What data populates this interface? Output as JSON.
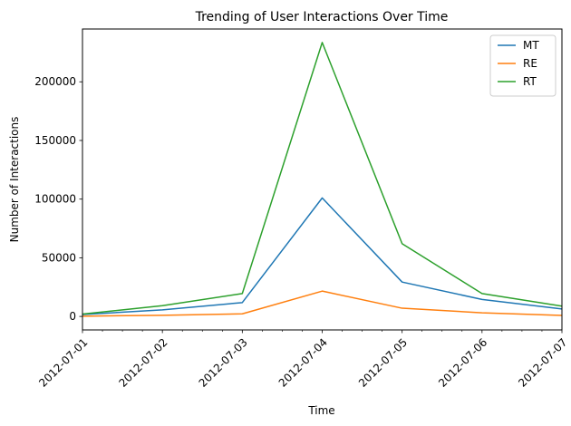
{
  "chart_data": {
    "type": "line",
    "title": "Trending of User Interactions Over Time",
    "xlabel": "Time",
    "ylabel": "Number of Interactions",
    "x": [
      "2012-07-01",
      "2012-07-02",
      "2012-07-03",
      "2012-07-04",
      "2012-07-05",
      "2012-07-06",
      "2012-07-07"
    ],
    "xlim": [
      "2012-07-01",
      "2012-07-07"
    ],
    "ylim": [
      -11500,
      245000
    ],
    "yticks": [
      0,
      50000,
      100000,
      150000,
      200000
    ],
    "series": [
      {
        "name": "MT",
        "color": "#1f77b4",
        "values": [
          1600,
          5600,
          11800,
          101000,
          29300,
          14500,
          6400
        ]
      },
      {
        "name": "RE",
        "color": "#ff7f0e",
        "values": [
          200,
          1000,
          2200,
          21600,
          7000,
          3100,
          900
        ]
      },
      {
        "name": "RT",
        "color": "#2ca02c",
        "values": [
          2000,
          9200,
          19500,
          233500,
          62000,
          19500,
          8800
        ]
      }
    ],
    "grid": false,
    "legend_position": "top-right"
  }
}
